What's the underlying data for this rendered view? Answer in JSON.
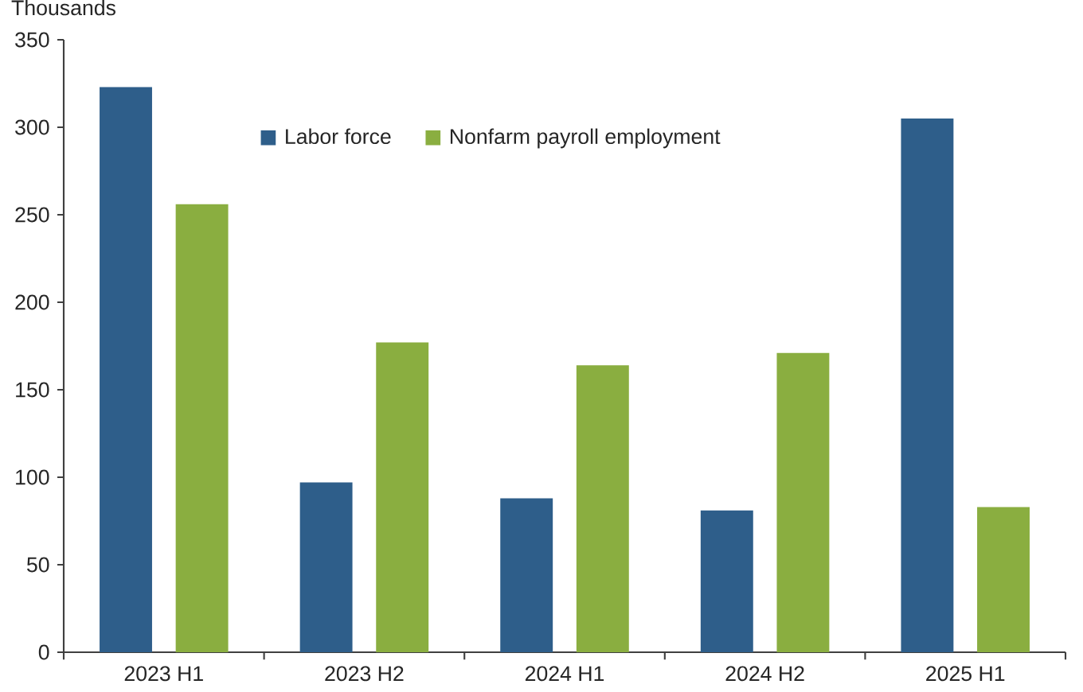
{
  "chart_data": {
    "type": "bar",
    "ylabel": "Thousands",
    "categories": [
      "2023 H1",
      "2023 H2",
      "2024 H1",
      "2024 H2",
      "2025 H1"
    ],
    "series": [
      {
        "name": "Labor force",
        "color": "#2e5e8a",
        "values": [
          323,
          97,
          88,
          81,
          305
        ]
      },
      {
        "name": "Nonfarm payroll employment",
        "color": "#8aae40",
        "values": [
          256,
          177,
          164,
          171,
          83
        ]
      }
    ],
    "ylim": [
      0,
      350
    ],
    "yticks": [
      0,
      50,
      100,
      150,
      200,
      250,
      300,
      350
    ],
    "legend": "top"
  }
}
